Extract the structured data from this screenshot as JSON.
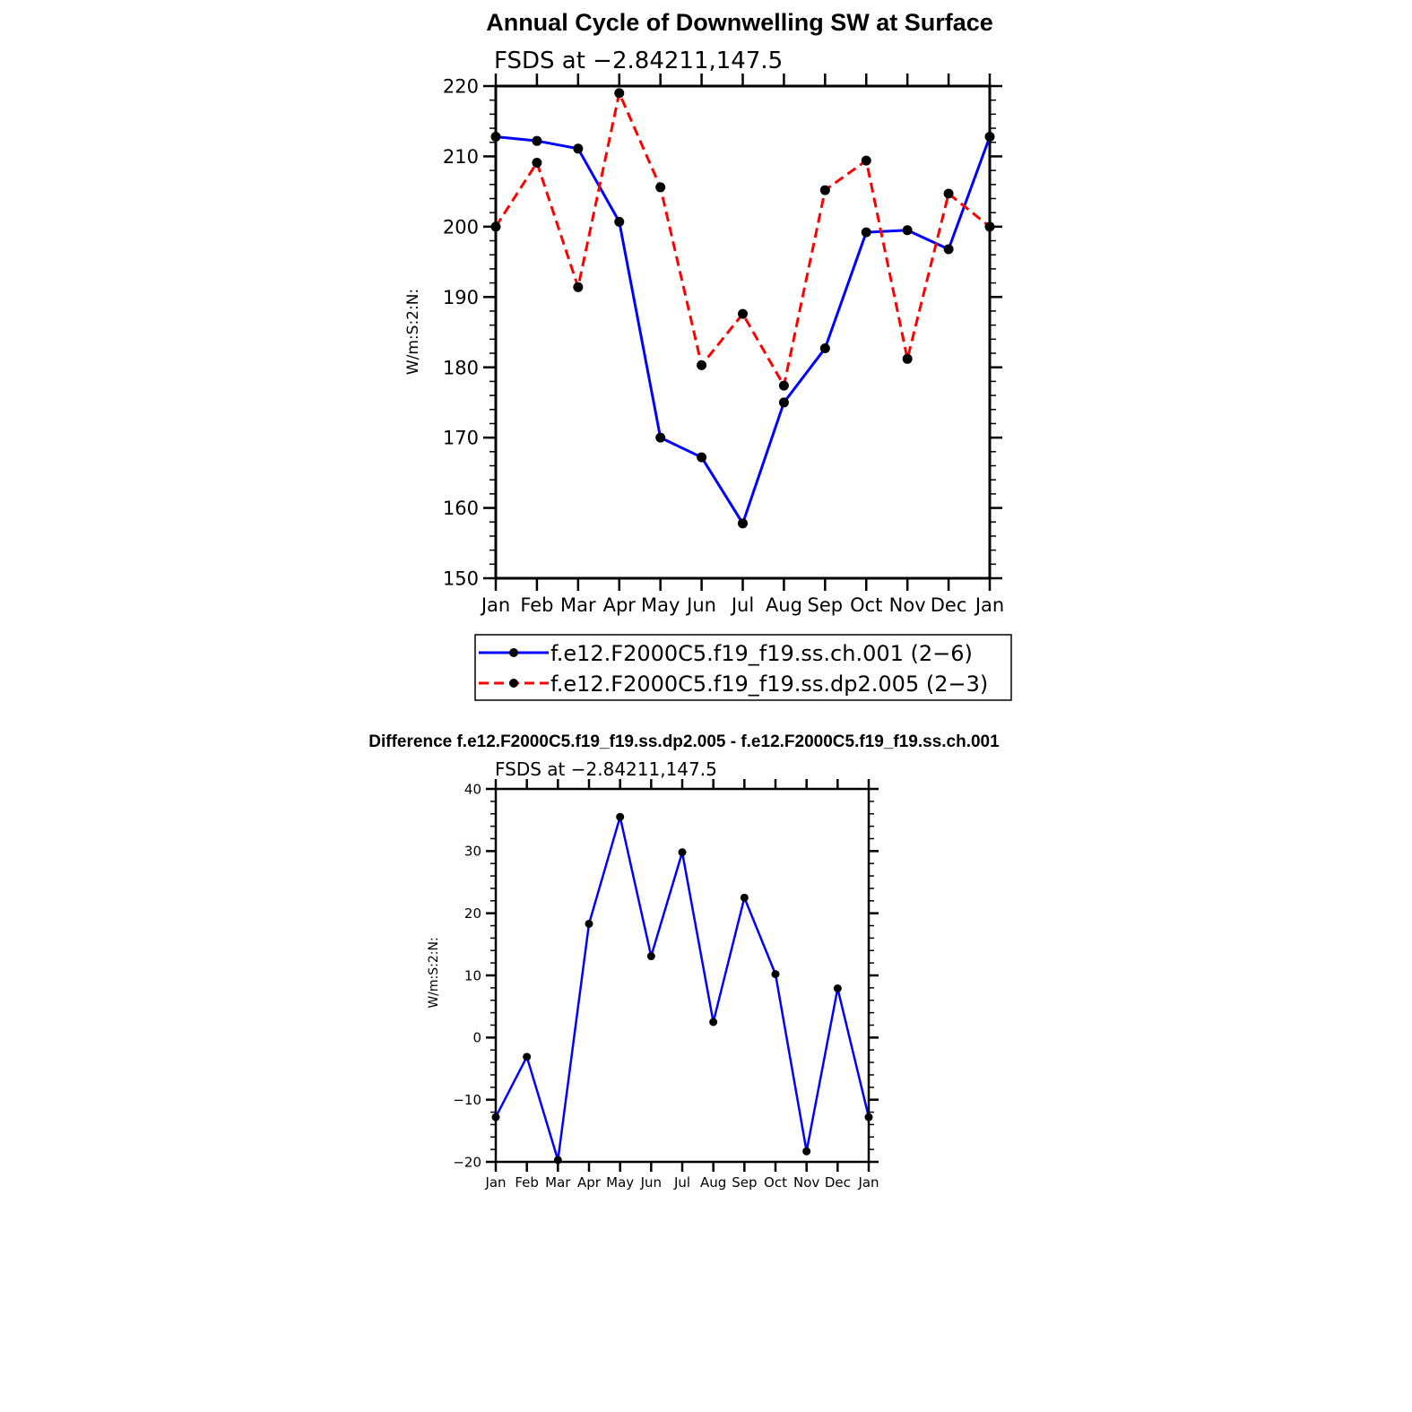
{
  "chart_data": [
    {
      "type": "line",
      "title": "Annual Cycle of Downwelling SW at Surface",
      "subtitle": "FSDS at −2.84211,147.5",
      "xlabel": "",
      "ylabel": "W/m:S:2:N:",
      "categories": [
        "Jan",
        "Feb",
        "Mar",
        "Apr",
        "May",
        "Jun",
        "Jul",
        "Aug",
        "Sep",
        "Oct",
        "Nov",
        "Dec",
        "Jan"
      ],
      "ylim": [
        150,
        220
      ],
      "yticks": [
        "150",
        "160",
        "170",
        "180",
        "190",
        "200",
        "210",
        "220"
      ],
      "series": [
        {
          "name": "f.e12.F2000C5.f19_f19.ss.ch.001 (2−6)",
          "color": "#0000ff",
          "dash": "solid",
          "values": [
            212.8,
            212.2,
            211.1,
            200.7,
            170.0,
            167.2,
            157.8,
            175.0,
            182.7,
            199.2,
            199.5,
            196.8,
            212.8
          ]
        },
        {
          "name": "f.e12.F2000C5.f19_f19.ss.dp2.005 (2−3)",
          "color": "#ff0000",
          "dash": "dashed",
          "values": [
            200.0,
            209.1,
            191.4,
            219.0,
            205.6,
            180.3,
            187.6,
            177.4,
            205.2,
            209.4,
            181.2,
            204.7,
            200.0
          ]
        }
      ],
      "legend": {
        "placement": "bottom",
        "entries": [
          "f.e12.F2000C5.f19_f19.ss.ch.001 (2−6)",
          "f.e12.F2000C5.f19_f19.ss.dp2.005 (2−3)"
        ]
      }
    },
    {
      "type": "line",
      "title": "Difference f.e12.F2000C5.f19_f19.ss.dp2.005 - f.e12.F2000C5.f19_f19.ss.ch.001",
      "subtitle": "FSDS at −2.84211,147.5",
      "xlabel": "",
      "ylabel": "W/m:S:2:N:",
      "categories": [
        "Jan",
        "Feb",
        "Mar",
        "Apr",
        "May",
        "Jun",
        "Jul",
        "Aug",
        "Sep",
        "Oct",
        "Nov",
        "Dec",
        "Jan"
      ],
      "ylim": [
        -20,
        40
      ],
      "yticks": [
        "−20",
        "−10",
        "0",
        "10",
        "20",
        "30",
        "40"
      ],
      "series": [
        {
          "name": "difference",
          "color": "#0000ff",
          "dash": "solid",
          "values": [
            -12.8,
            -3.1,
            -19.7,
            18.3,
            35.5,
            13.1,
            29.8,
            2.5,
            22.5,
            10.2,
            -18.3,
            7.9,
            -12.8
          ]
        }
      ]
    }
  ]
}
